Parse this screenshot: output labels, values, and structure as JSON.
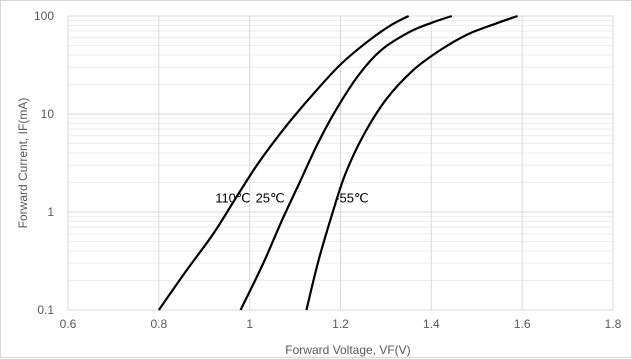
{
  "chart_data": {
    "type": "line",
    "xlabel": "Forward Voltage, VF(V)",
    "ylabel": "Forward Current, IF(mA)",
    "xlim": [
      0.6,
      1.8
    ],
    "ylim": [
      0.1,
      100
    ],
    "yscale": "log",
    "grid": true,
    "x_ticks": [
      "0.6",
      "0.8",
      "1",
      "1.2",
      "1.4",
      "1.6",
      "1.8"
    ],
    "y_ticks": [
      "0.1",
      "1",
      "10",
      "100"
    ],
    "colors": {
      "grid_major": "#d9d9d9",
      "grid_minor": "#eeeeee",
      "line": "#000000",
      "text": "#595959"
    },
    "series": [
      {
        "name": "110℃",
        "label_at": {
          "x": 0.963,
          "y": 1.25
        },
        "points": [
          [
            0.8,
            0.1
          ],
          [
            0.86,
            0.25
          ],
          [
            0.92,
            0.6
          ],
          [
            0.97,
            1.4
          ],
          [
            1.02,
            3.2
          ],
          [
            1.08,
            7.5
          ],
          [
            1.14,
            16
          ],
          [
            1.2,
            32
          ],
          [
            1.26,
            55
          ],
          [
            1.31,
            80
          ],
          [
            1.35,
            100
          ]
        ]
      },
      {
        "name": "25℃",
        "label_at": {
          "x": 1.045,
          "y": 1.25
        },
        "points": [
          [
            0.98,
            0.1
          ],
          [
            1.03,
            0.3
          ],
          [
            1.07,
            0.8
          ],
          [
            1.11,
            2.0
          ],
          [
            1.15,
            5.0
          ],
          [
            1.19,
            11
          ],
          [
            1.24,
            25
          ],
          [
            1.29,
            45
          ],
          [
            1.35,
            68
          ],
          [
            1.4,
            85
          ],
          [
            1.445,
            100
          ]
        ]
      },
      {
        "name": "-55℃",
        "label_at": {
          "x": 1.225,
          "y": 1.25
        },
        "points": [
          [
            1.125,
            0.1
          ],
          [
            1.15,
            0.3
          ],
          [
            1.18,
            0.9
          ],
          [
            1.21,
            2.4
          ],
          [
            1.25,
            6
          ],
          [
            1.3,
            14
          ],
          [
            1.36,
            28
          ],
          [
            1.42,
            45
          ],
          [
            1.48,
            65
          ],
          [
            1.54,
            83
          ],
          [
            1.59,
            100
          ]
        ]
      }
    ]
  }
}
